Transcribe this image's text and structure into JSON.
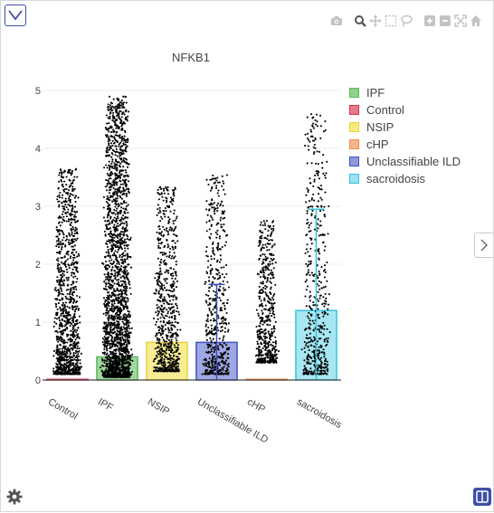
{
  "toolbar": {
    "icons": [
      "camera-icon",
      "zoom-icon",
      "pan-icon",
      "box-select-icon",
      "lasso-icon",
      "zoom-in-icon",
      "zoom-out-icon",
      "autoscale-icon",
      "reset-axes-icon"
    ]
  },
  "chart_data": {
    "type": "bar",
    "title": "NFKB1",
    "xlabel": "",
    "ylabel": "",
    "ylim": [
      0,
      5
    ],
    "yticks": [
      "0",
      "1",
      "2",
      "3",
      "4",
      "5"
    ],
    "categories": [
      "Control",
      "IPF",
      "NSIP",
      "Unclassifiable ILD",
      "cHP",
      "sacroidosis"
    ],
    "grid": true,
    "legend_position": "right",
    "series": [
      {
        "name": "IPF",
        "category": "IPF",
        "mean": 0.4,
        "color": "#5cb85c",
        "fill": "#8fd18f",
        "points_max": 4.9,
        "points_min": 0.05,
        "error": null
      },
      {
        "name": "Control",
        "category": "Control",
        "mean": 0.0,
        "color": "#d9304f",
        "fill": "#e87a8f",
        "points_max": 3.65,
        "points_min": 0.1,
        "error": null
      },
      {
        "name": "NSIP",
        "category": "NSIP",
        "mean": 0.65,
        "color": "#e8d33a",
        "fill": "#f6ea80",
        "points_max": 3.35,
        "points_min": 0.15,
        "error": null
      },
      {
        "name": "cHP",
        "category": "cHP",
        "mean": 0.0,
        "color": "#f08a4b",
        "fill": "#f5b58c",
        "points_max": 2.75,
        "points_min": 0.3,
        "error": null
      },
      {
        "name": "Unclassifiable ILD",
        "category": "Unclassifiable ILD",
        "mean": 0.65,
        "color": "#3d4fc4",
        "fill": "#8e99dd",
        "points_max": 3.55,
        "points_min": 0.1,
        "error": [
          0.0,
          1.65
        ]
      },
      {
        "name": "sacroidosis",
        "category": "sacroidosis",
        "mean": 1.2,
        "color": "#36c3de",
        "fill": "#98e3ef",
        "points_max": 4.6,
        "points_min": 0.1,
        "error": [
          0.0,
          2.95
        ]
      }
    ]
  }
}
